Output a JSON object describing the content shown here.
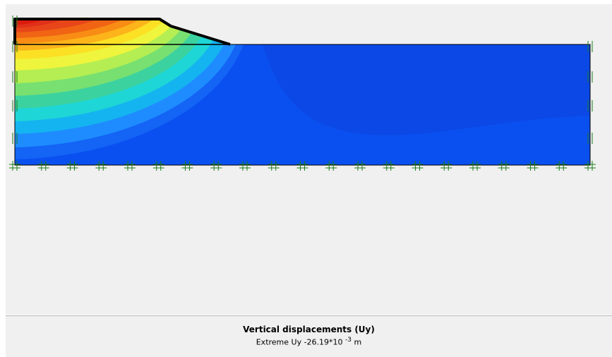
{
  "caption": {
    "title": "Vertical displacements (Uy)",
    "extreme_prefix": "Extreme Uy -26.19*10",
    "extreme_exponent": "-3",
    "extreme_unit": "m"
  },
  "colors": {
    "background": "#f0f0f0",
    "contour_low": "#0a50f0",
    "contour_high": "#dc1a0c",
    "outline": "#000000",
    "fixity": "#1a7a1a"
  }
}
